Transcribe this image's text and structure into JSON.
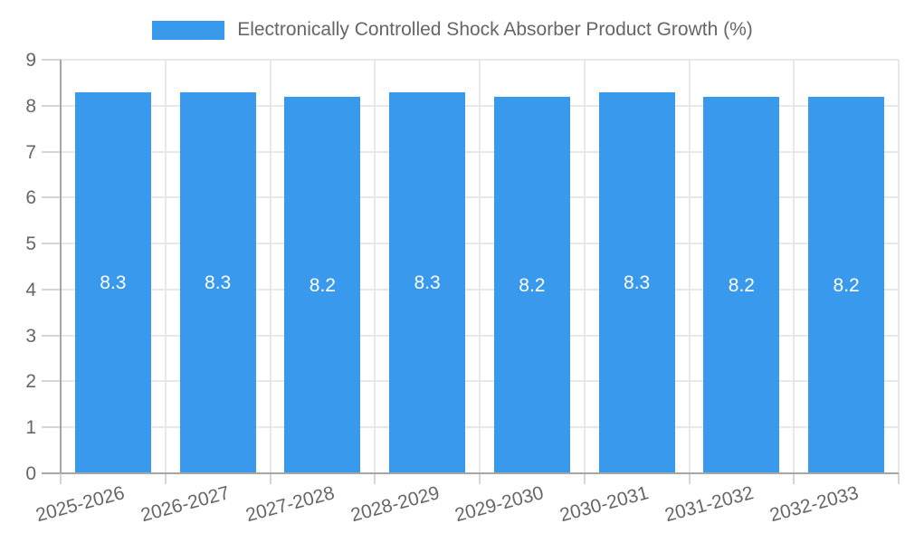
{
  "chart_data": {
    "type": "bar",
    "title": "Electronically Controlled Shock Absorber Product Growth (%)",
    "categories": [
      "2025-2026",
      "2026-2027",
      "2027-2028",
      "2028-2029",
      "2029-2030",
      "2030-2031",
      "2031-2032",
      "2032-2033"
    ],
    "values": [
      8.3,
      8.3,
      8.2,
      8.3,
      8.2,
      8.3,
      8.2,
      8.2
    ],
    "value_labels": [
      "8.3",
      "8.3",
      "8.2",
      "8.3",
      "8.2",
      "8.3",
      "8.2",
      "8.2"
    ],
    "xlabel": "",
    "ylabel": "",
    "ylim": [
      0,
      9
    ],
    "yticks": [
      0,
      1,
      2,
      3,
      4,
      5,
      6,
      7,
      8,
      9
    ],
    "grid": true,
    "legend_position": "top",
    "colors": {
      "bar": "#3999EC",
      "grid": "#E8E8E8",
      "axis": "#A6A6A6",
      "tick": "#D5D5D5",
      "axis_text": "#666666",
      "value_label": "#FFFFFF",
      "background": "#FFFFFF"
    }
  }
}
